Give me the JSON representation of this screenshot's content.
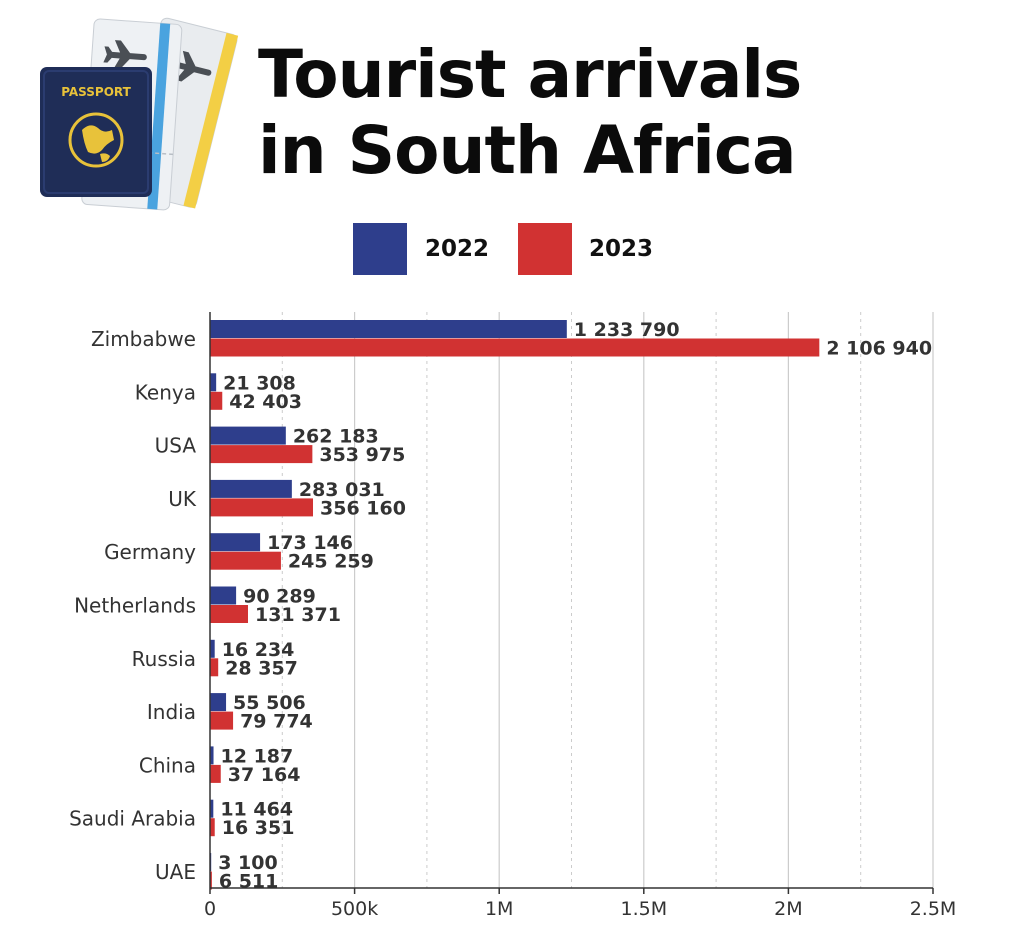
{
  "title_lines": [
    "Tourist arrivals",
    "in South Africa"
  ],
  "header_art": {
    "passport_text": "PASSPORT",
    "passport_color": "#1f2d57",
    "emblem_color": "#e8c23a",
    "ticket_color": "#e9ecef",
    "ticket_stripe_blue": "#4aa3df",
    "ticket_stripe_yellow": "#f3cf45"
  },
  "colors": {
    "series_2022": "#2e3e8c",
    "series_2023": "#d13232",
    "gridline": "#cccccc",
    "axis": "#333333"
  },
  "chart_data": {
    "type": "bar",
    "orientation": "horizontal",
    "title": "Tourist arrivals in South Africa",
    "legend_position": "top",
    "categories": [
      "Zimbabwe",
      "Kenya",
      "USA",
      "UK",
      "Germany",
      "Netherlands",
      "Russia",
      "India",
      "China",
      "Saudi Arabia",
      "UAE"
    ],
    "series": [
      {
        "name": "2022",
        "values": [
          1233790,
          21308,
          262183,
          283031,
          173146,
          90289,
          16234,
          55506,
          12187,
          11464,
          3100
        ],
        "labels": [
          "1 233 790",
          "21 308",
          "262 183",
          "283 031",
          "173 146",
          "90 289",
          "16 234",
          "55 506",
          "12 187",
          "11 464",
          "3 100"
        ]
      },
      {
        "name": "2023",
        "values": [
          2106940,
          42403,
          353975,
          356160,
          245259,
          131371,
          28357,
          79774,
          37164,
          16351,
          6511
        ],
        "labels": [
          "2 106 940",
          "42 403",
          "353 975",
          "356 160",
          "245 259",
          "131 371",
          "28 357",
          "79 774",
          "37 164",
          "16 351",
          "6 511"
        ]
      }
    ],
    "xlim": [
      0,
      2500000
    ],
    "ticks": [
      0,
      500000,
      1000000,
      1500000,
      2000000,
      2500000
    ],
    "tick_labels": [
      "0",
      "500k",
      "1M",
      "1.5M",
      "2M",
      "2.5M"
    ],
    "minor_ticks": [
      250000,
      750000,
      1250000,
      1750000,
      2250000
    ],
    "grid": true
  }
}
